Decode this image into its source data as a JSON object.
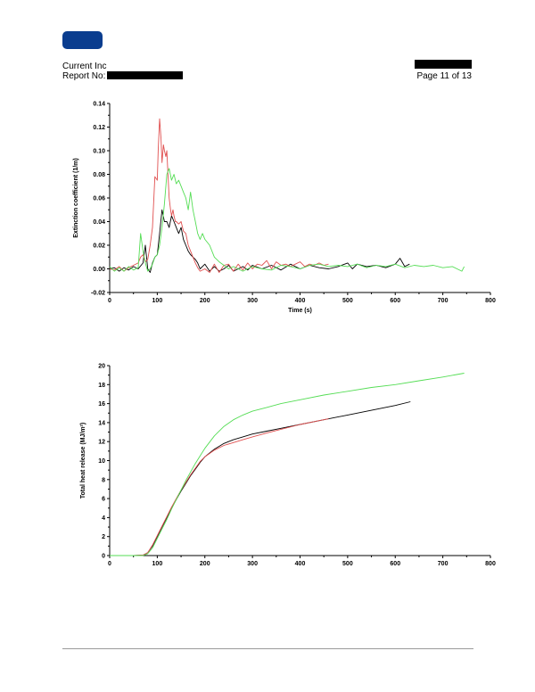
{
  "header": {
    "company": "Current Inc",
    "report_label": "Report No:",
    "page_text": "Page 11 of 13"
  },
  "colors": {
    "logo": "#0a3d8f",
    "black": "#000000",
    "red": "#e05050",
    "green": "#55dd55"
  },
  "chart_data": [
    {
      "type": "line",
      "title": "",
      "xlabel": "Time (s)",
      "ylabel": "Extinction coefficient (1/m)",
      "xlim": [
        0,
        800
      ],
      "ylim": [
        -0.02,
        0.14
      ],
      "xticks": [
        0,
        100,
        200,
        300,
        400,
        500,
        600,
        700,
        800
      ],
      "yticks": [
        -0.02,
        0.0,
        0.02,
        0.04,
        0.06,
        0.08,
        0.1,
        0.12,
        0.14
      ],
      "ytick_labels": [
        "-0.02",
        "0.00",
        "0.02",
        "0.04",
        "0.06",
        "0.08",
        "0.10",
        "0.12",
        "0.14"
      ],
      "series": [
        {
          "color": "black",
          "x": [
            0,
            10,
            20,
            30,
            40,
            50,
            60,
            70,
            75,
            80,
            85,
            90,
            95,
            100,
            105,
            110,
            115,
            120,
            125,
            130,
            135,
            140,
            145,
            150,
            155,
            160,
            165,
            170,
            175,
            180,
            185,
            190,
            200,
            210,
            220,
            230,
            240,
            250,
            260,
            270,
            280,
            290,
            300,
            320,
            340,
            360,
            380,
            400,
            420,
            440,
            460,
            480,
            500,
            510,
            520,
            540,
            560,
            580,
            600,
            610,
            620,
            630
          ],
          "y": [
            0.0,
            0.001,
            -0.002,
            0.001,
            -0.001,
            0.002,
            0.0,
            0.005,
            0.02,
            0.0,
            -0.003,
            0.005,
            0.01,
            0.012,
            0.03,
            0.05,
            0.04,
            0.04,
            0.035,
            0.045,
            0.04,
            0.035,
            0.03,
            0.035,
            0.025,
            0.02,
            0.015,
            0.012,
            0.01,
            0.008,
            0.005,
            0.0,
            0.004,
            -0.002,
            0.002,
            -0.002,
            0.0,
            0.003,
            -0.002,
            0.0,
            0.002,
            -0.001,
            0.003,
            0.0,
            0.003,
            -0.001,
            0.004,
            0.0,
            0.003,
            0.001,
            0.0,
            0.002,
            0.005,
            0.0,
            0.004,
            0.002,
            0.003,
            0.001,
            0.004,
            0.009,
            0.002,
            0.004
          ]
        },
        {
          "color": "red",
          "x": [
            0,
            10,
            20,
            30,
            40,
            50,
            60,
            65,
            70,
            75,
            80,
            85,
            90,
            95,
            100,
            102,
            105,
            108,
            110,
            113,
            115,
            118,
            120,
            123,
            125,
            128,
            130,
            133,
            135,
            138,
            140,
            145,
            150,
            155,
            160,
            165,
            170,
            175,
            180,
            185,
            190,
            200,
            210,
            220,
            230,
            240,
            250,
            260,
            270,
            280,
            290,
            300,
            310,
            320,
            330,
            340,
            350,
            360,
            370,
            380,
            390,
            400,
            410,
            420,
            430,
            440,
            450,
            460
          ],
          "y": [
            0.0,
            -0.001,
            0.002,
            -0.002,
            0.001,
            0.003,
            0.005,
            0.01,
            0.012,
            0.006,
            0.008,
            0.02,
            0.035,
            0.078,
            0.075,
            0.1,
            0.127,
            0.11,
            0.09,
            0.105,
            0.1,
            0.095,
            0.1,
            0.075,
            0.06,
            0.05,
            0.045,
            0.05,
            0.045,
            0.04,
            0.04,
            0.038,
            0.04,
            0.032,
            0.03,
            0.02,
            0.015,
            0.01,
            0.005,
            0.001,
            -0.002,
            0.0,
            -0.003,
            0.004,
            -0.003,
            0.003,
            0.004,
            -0.002,
            0.004,
            -0.001,
            0.005,
            0.0,
            0.004,
            0.003,
            0.007,
            0.0,
            0.006,
            0.003,
            0.004,
            0.002,
            0.004,
            0.006,
            0.002,
            0.004,
            0.003,
            0.005,
            0.003,
            0.004
          ]
        },
        {
          "color": "green",
          "x": [
            0,
            10,
            20,
            30,
            40,
            50,
            60,
            65,
            70,
            75,
            80,
            85,
            90,
            95,
            100,
            105,
            110,
            115,
            120,
            125,
            130,
            135,
            140,
            145,
            150,
            155,
            160,
            165,
            170,
            175,
            180,
            185,
            190,
            195,
            200,
            210,
            220,
            230,
            240,
            250,
            260,
            280,
            300,
            320,
            340,
            360,
            380,
            400,
            420,
            440,
            460,
            480,
            500,
            520,
            540,
            560,
            580,
            600,
            620,
            640,
            660,
            680,
            700,
            720,
            740,
            745
          ],
          "y": [
            0.002,
            -0.002,
            0.001,
            -0.002,
            0.002,
            -0.001,
            0.001,
            0.03,
            0.015,
            0.005,
            -0.002,
            0.0,
            0.004,
            0.01,
            0.012,
            0.02,
            0.035,
            0.055,
            0.08,
            0.085,
            0.075,
            0.08,
            0.072,
            0.075,
            0.07,
            0.065,
            0.06,
            0.05,
            0.065,
            0.05,
            0.04,
            0.03,
            0.025,
            0.03,
            0.025,
            0.02,
            0.01,
            0.006,
            0.003,
            0.0,
            0.002,
            -0.002,
            0.002,
            0.0,
            -0.001,
            0.003,
            0.002,
            0.0,
            0.003,
            0.004,
            0.002,
            0.003,
            0.002,
            0.004,
            0.001,
            0.003,
            0.002,
            0.004,
            0.001,
            0.003,
            0.002,
            0.003,
            0.001,
            0.002,
            -0.002,
            0.002
          ]
        }
      ]
    },
    {
      "type": "line",
      "title": "",
      "xlabel": "",
      "ylabel": "Total heat release (MJ/m²)",
      "xlim": [
        0,
        800
      ],
      "ylim": [
        0,
        20
      ],
      "xticks": [
        0,
        100,
        200,
        300,
        400,
        500,
        600,
        700,
        800
      ],
      "yticks": [
        0,
        2,
        4,
        6,
        8,
        10,
        12,
        14,
        16,
        18,
        20
      ],
      "ytick_labels": [
        "0",
        "2",
        "4",
        "6",
        "8",
        "10",
        "12",
        "14",
        "16",
        "18",
        "20"
      ],
      "series": [
        {
          "color": "black",
          "x": [
            0,
            50,
            70,
            80,
            90,
            100,
            110,
            120,
            130,
            140,
            150,
            160,
            170,
            180,
            190,
            200,
            220,
            240,
            260,
            280,
            300,
            330,
            360,
            400,
            450,
            500,
            550,
            600,
            632
          ],
          "y": [
            0,
            0,
            0.05,
            0.3,
            1.0,
            2.0,
            3.0,
            4.0,
            5.0,
            5.9,
            6.8,
            7.6,
            8.4,
            9.1,
            9.8,
            10.4,
            11.2,
            11.8,
            12.2,
            12.5,
            12.8,
            13.1,
            13.4,
            13.8,
            14.3,
            14.8,
            15.3,
            15.8,
            16.2
          ]
        },
        {
          "color": "red",
          "x": [
            0,
            50,
            70,
            80,
            90,
            100,
            110,
            120,
            130,
            140,
            150,
            160,
            170,
            180,
            190,
            200,
            220,
            240,
            260,
            280,
            300,
            330,
            360,
            400,
            430,
            460
          ],
          "y": [
            0,
            0,
            0.05,
            0.3,
            1.1,
            2.1,
            3.1,
            4.1,
            5.1,
            6.0,
            6.9,
            7.7,
            8.5,
            9.2,
            9.9,
            10.4,
            11.1,
            11.6,
            11.9,
            12.2,
            12.5,
            12.9,
            13.3,
            13.8,
            14.1,
            14.4
          ]
        },
        {
          "color": "green",
          "x": [
            0,
            50,
            70,
            80,
            90,
            100,
            110,
            120,
            130,
            140,
            150,
            160,
            170,
            180,
            190,
            200,
            220,
            240,
            260,
            280,
            300,
            330,
            360,
            400,
            450,
            500,
            550,
            600,
            650,
            700,
            745
          ],
          "y": [
            0,
            0,
            0.0,
            0.2,
            0.8,
            1.8,
            2.8,
            3.8,
            4.9,
            5.9,
            6.9,
            7.9,
            8.8,
            9.7,
            10.5,
            11.3,
            12.6,
            13.6,
            14.3,
            14.8,
            15.2,
            15.6,
            16.0,
            16.4,
            16.9,
            17.3,
            17.7,
            18.0,
            18.4,
            18.8,
            19.2
          ]
        }
      ]
    }
  ]
}
